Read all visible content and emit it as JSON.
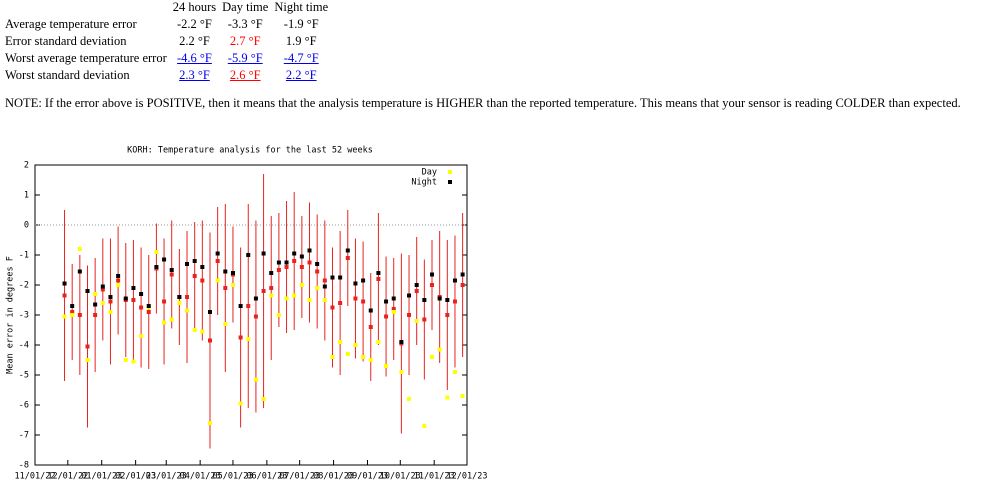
{
  "table": {
    "header": [
      "24 hours",
      "Day time",
      "Night time"
    ],
    "rows": [
      {
        "label": "Average temperature error",
        "cells": [
          {
            "text": "-2.2 °F"
          },
          {
            "text": "-3.3 °F"
          },
          {
            "text": "-1.9 °F"
          }
        ]
      },
      {
        "label": "Error standard deviation",
        "cells": [
          {
            "text": "2.2 °F"
          },
          {
            "text": "2.7 °F",
            "color": "#ff0000"
          },
          {
            "text": "1.9 °F"
          }
        ]
      },
      {
        "label": "Worst average temperature error",
        "cells": [
          {
            "text": "-4.6 °F",
            "link": true
          },
          {
            "text": "-5.9 °F",
            "link": true
          },
          {
            "text": "-4.7 °F",
            "link": true
          }
        ]
      },
      {
        "label": "Worst standard deviation",
        "cells": [
          {
            "text": "2.3 °F",
            "link": true
          },
          {
            "text": "2.6 °F",
            "link": true,
            "color": "#ff0000"
          },
          {
            "text": "2.2 °F",
            "link": true
          }
        ]
      }
    ]
  },
  "note": "NOTE: If the error above is POSITIVE, then it means that the analysis temperature is HIGHER than the reported temperature. This means that your sensor is reading COLDER than expected.",
  "chart_data": {
    "type": "scatter",
    "title": "KORH: Temperature analysis for the last 52 weeks",
    "y_label": "Mean error in degrees F",
    "x": [
      "11/28/22",
      "12/05/22",
      "12/12/22",
      "12/19/22",
      "12/26/22",
      "01/02/23",
      "01/09/23",
      "01/16/23",
      "01/23/23",
      "01/30/23",
      "02/06/23",
      "02/13/23",
      "02/20/23",
      "02/27/23",
      "03/06/23",
      "03/13/23",
      "03/20/23",
      "03/27/23",
      "04/03/23",
      "04/10/23",
      "04/17/23",
      "04/24/23",
      "05/01/23",
      "05/08/23",
      "05/15/23",
      "05/22/23",
      "05/29/23",
      "06/05/23",
      "06/12/23",
      "06/19/23",
      "06/26/23",
      "07/03/23",
      "07/10/23",
      "07/17/23",
      "07/24/23",
      "07/31/23",
      "08/07/23",
      "08/14/23",
      "08/21/23",
      "08/28/23",
      "09/04/23",
      "09/11/23",
      "09/18/23",
      "09/25/23",
      "10/02/23",
      "10/09/23",
      "10/16/23",
      "10/23/23",
      "10/30/23",
      "11/06/23",
      "11/13/23",
      "11/20/23",
      "11/27/23"
    ],
    "series": [
      {
        "color": "#e8231f",
        "values": [
          -2.35,
          -2.9,
          -3.0,
          -4.05,
          -3.0,
          -2.15,
          -2.55,
          -1.85,
          -2.5,
          -2.5,
          -2.75,
          -2.9,
          -1.45,
          -2.55,
          -1.65,
          -2.4,
          -2.4,
          -1.7,
          -1.85,
          -3.85,
          -1.2,
          -2.1,
          -1.65,
          -3.75,
          -2.7,
          -3.05,
          -2.2,
          -2.1,
          -1.5,
          -1.4,
          -1.2,
          -1.4,
          -1.25,
          -1.55,
          -1.85,
          -2.75,
          -2.6,
          -1.1,
          -2.45,
          -2.55,
          -3.4,
          -1.8,
          -3.05,
          -2.8,
          -3.95,
          -3.0,
          -2.2,
          -3.15,
          -2.0,
          -2.4,
          -3.0,
          -2.55,
          -2.0
        ],
        "errors": [
          2.85,
          1.6,
          2.0,
          2.7,
          1.9,
          1.7,
          2.1,
          1.8,
          1.9,
          2.0,
          2.0,
          1.9,
          1.5,
          2.1,
          1.8,
          1.6,
          2.2,
          1.8,
          2.0,
          3.6,
          1.8,
          2.8,
          1.6,
          3.0,
          3.4,
          3.2,
          3.9,
          2.4,
          1.9,
          2.2,
          2.3,
          1.7,
          2.0,
          1.9,
          2.0,
          2.0,
          2.4,
          1.6,
          2.0,
          2.0,
          1.8,
          2.2,
          2.0,
          1.7,
          3.0,
          2.0,
          1.8,
          2.0,
          1.5,
          2.2,
          2.5,
          2.2,
          2.4
        ]
      },
      {
        "name": "Day",
        "color": "#ffff00",
        "values": [
          -3.05,
          -3.0,
          -0.8,
          -4.5,
          -2.3,
          -2.6,
          -2.9,
          -2.0,
          -4.5,
          -4.55,
          -3.7,
          -2.75,
          -0.9,
          -3.25,
          -3.15,
          -2.6,
          -2.85,
          -3.5,
          -3.55,
          -6.6,
          -1.85,
          -3.3,
          -2.0,
          -5.95,
          -3.8,
          -5.15,
          -5.8,
          -2.35,
          -3.0,
          -2.45,
          -2.35,
          -2.0,
          -2.5,
          -2.1,
          -2.5,
          -4.4,
          -3.9,
          -4.3,
          -4.0,
          -4.4,
          -4.5,
          -3.9,
          -4.7,
          -2.9,
          -4.9,
          -5.8,
          -3.2,
          -6.7,
          -4.4,
          -4.15,
          -5.75,
          -4.9,
          -5.7
        ]
      },
      {
        "name": "Night",
        "color": "#000000",
        "values": [
          -1.95,
          -2.7,
          -1.55,
          -2.2,
          -2.65,
          -2.05,
          -2.4,
          -1.7,
          -2.45,
          -2.1,
          -2.3,
          -2.7,
          -1.4,
          -1.15,
          -1.5,
          -2.4,
          -1.3,
          -1.2,
          -1.4,
          -2.9,
          -0.95,
          -1.55,
          -1.6,
          -2.7,
          -1.0,
          -2.45,
          -0.95,
          -1.6,
          -1.25,
          -1.25,
          -0.95,
          -1.05,
          -0.85,
          -1.3,
          -2.05,
          -1.75,
          -1.75,
          -0.85,
          -1.95,
          -1.85,
          -2.85,
          -1.6,
          -2.55,
          -2.45,
          -3.9,
          -2.35,
          -2.0,
          -2.5,
          -1.65,
          -2.45,
          -2.5,
          -1.85,
          -1.65
        ]
      }
    ],
    "xlim": [
      "11/01/22",
      "12/01/23"
    ],
    "xticks": [
      "11/01/22",
      "12/01/22",
      "01/01/23",
      "02/01/23",
      "03/01/23",
      "04/01/23",
      "05/01/23",
      "06/01/23",
      "07/01/23",
      "08/01/23",
      "09/01/23",
      "10/01/23",
      "11/01/23",
      "12/01/23"
    ],
    "ylim": [
      -8,
      2
    ],
    "yticks": [
      -8,
      -7,
      -6,
      -5,
      -4,
      -3,
      -2,
      -1,
      0,
      1,
      2
    ],
    "zero_line": true,
    "legend": "top-right"
  }
}
